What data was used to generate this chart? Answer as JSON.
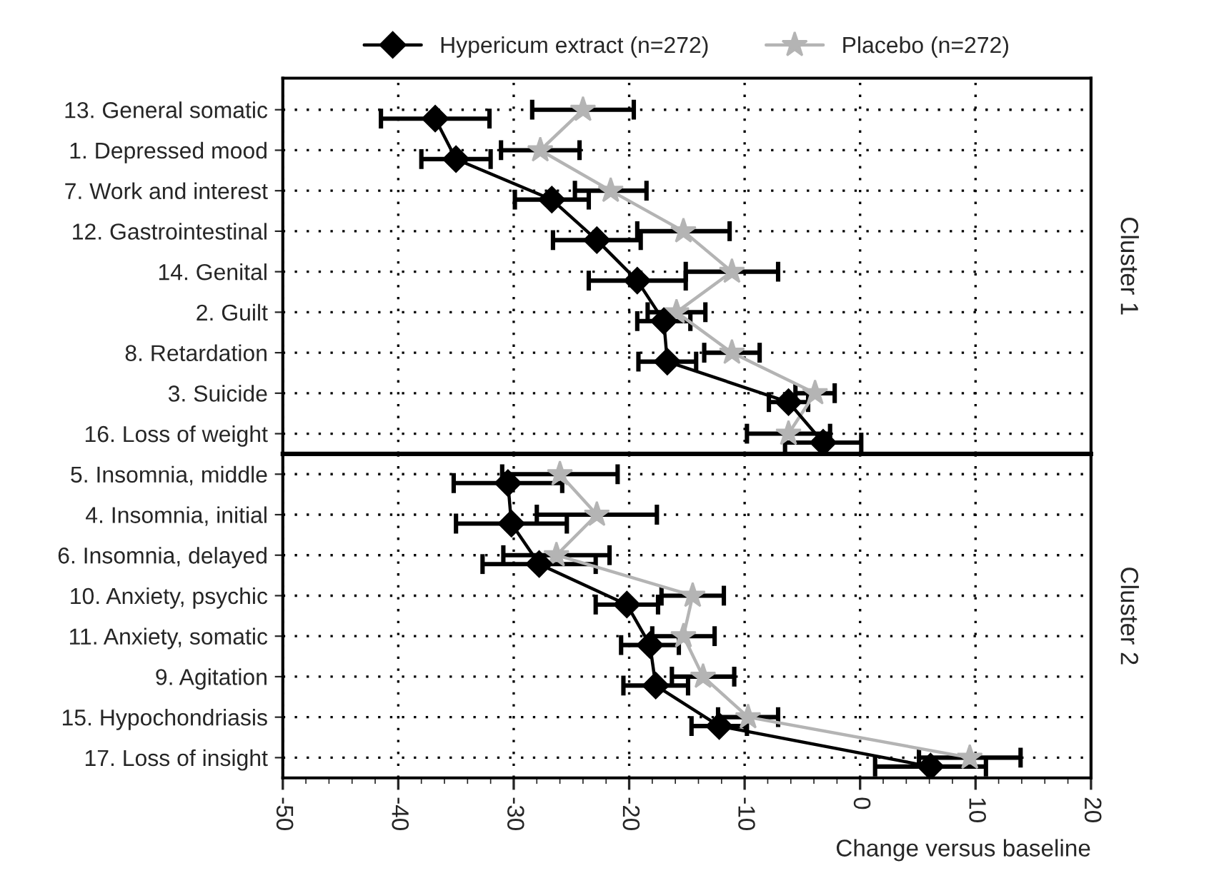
{
  "chart_data": [
    {
      "type": "line",
      "orientation": "horizontal",
      "categories": [
        "13. General somatic",
        "1. Depressed mood",
        "7. Work and interest",
        "12. Gastrointestinal",
        "14. Genital",
        "2. Guilt",
        "8. Retardation",
        "3. Suicide",
        "16. Loss of weight"
      ],
      "series": [
        {
          "name": "Hypericum extract (n=272)",
          "color": "#000000",
          "marker": "diamond",
          "values": [
            -36.8,
            -35.0,
            -26.7,
            -22.8,
            -19.3,
            -17.0,
            -16.7,
            -6.2,
            -3.2
          ],
          "errors": [
            4.7,
            3.0,
            3.2,
            3.8,
            4.2,
            2.3,
            2.5,
            1.7,
            3.3
          ]
        },
        {
          "name": "Placebo (n=272)",
          "color": "#b4b4b4",
          "marker": "star",
          "values": [
            -24.0,
            -27.7,
            -21.6,
            -15.3,
            -11.1,
            -15.9,
            -11.1,
            -3.9,
            -6.2
          ],
          "errors": [
            4.4,
            3.4,
            3.1,
            4.0,
            4.0,
            2.5,
            2.4,
            1.7,
            3.6
          ]
        }
      ],
      "xlim": [
        -50,
        20
      ],
      "xticks": [
        -50,
        -40,
        -30,
        -20,
        -10,
        0,
        10,
        20
      ],
      "tick_labels": "y",
      "annotations": [
        "Cluster 1"
      ],
      "grid": true,
      "legend": "top",
      "line_style": "solid"
    },
    {
      "type": "line",
      "orientation": "horizontal",
      "categories": [
        "5. Insomnia, middle",
        "4. Insomnia, initial",
        "6. Insomnia, delayed",
        "10. Anxiety, psychic",
        "11. Anxiety, somatic",
        "9. Agitation",
        "15. Hypochondriasis",
        "17. Loss of insight"
      ],
      "series": [
        {
          "color": "#000000",
          "marker": "diamond",
          "values": [
            -30.5,
            -30.2,
            -27.8,
            -20.2,
            -18.2,
            -17.7,
            -12.2,
            6.1
          ],
          "errors": [
            4.7,
            4.8,
            4.9,
            2.7,
            2.5,
            2.8,
            2.4,
            4.8
          ]
        },
        {
          "color": "#b4b4b4",
          "marker": "star",
          "values": [
            -26.0,
            -22.8,
            -26.3,
            -14.5,
            -15.3,
            -13.6,
            -9.7,
            9.5
          ],
          "errors": [
            5.0,
            5.2,
            4.6,
            2.7,
            2.7,
            2.7,
            2.6,
            4.4
          ]
        }
      ],
      "xlim": [
        -50,
        20
      ],
      "xticks": [
        -50,
        -40,
        -30,
        -20,
        -10,
        0,
        10,
        20
      ],
      "xlabel": "Change versus baseline",
      "annotations": [
        "Cluster 2"
      ],
      "grid": true,
      "line_style": "solid"
    }
  ]
}
